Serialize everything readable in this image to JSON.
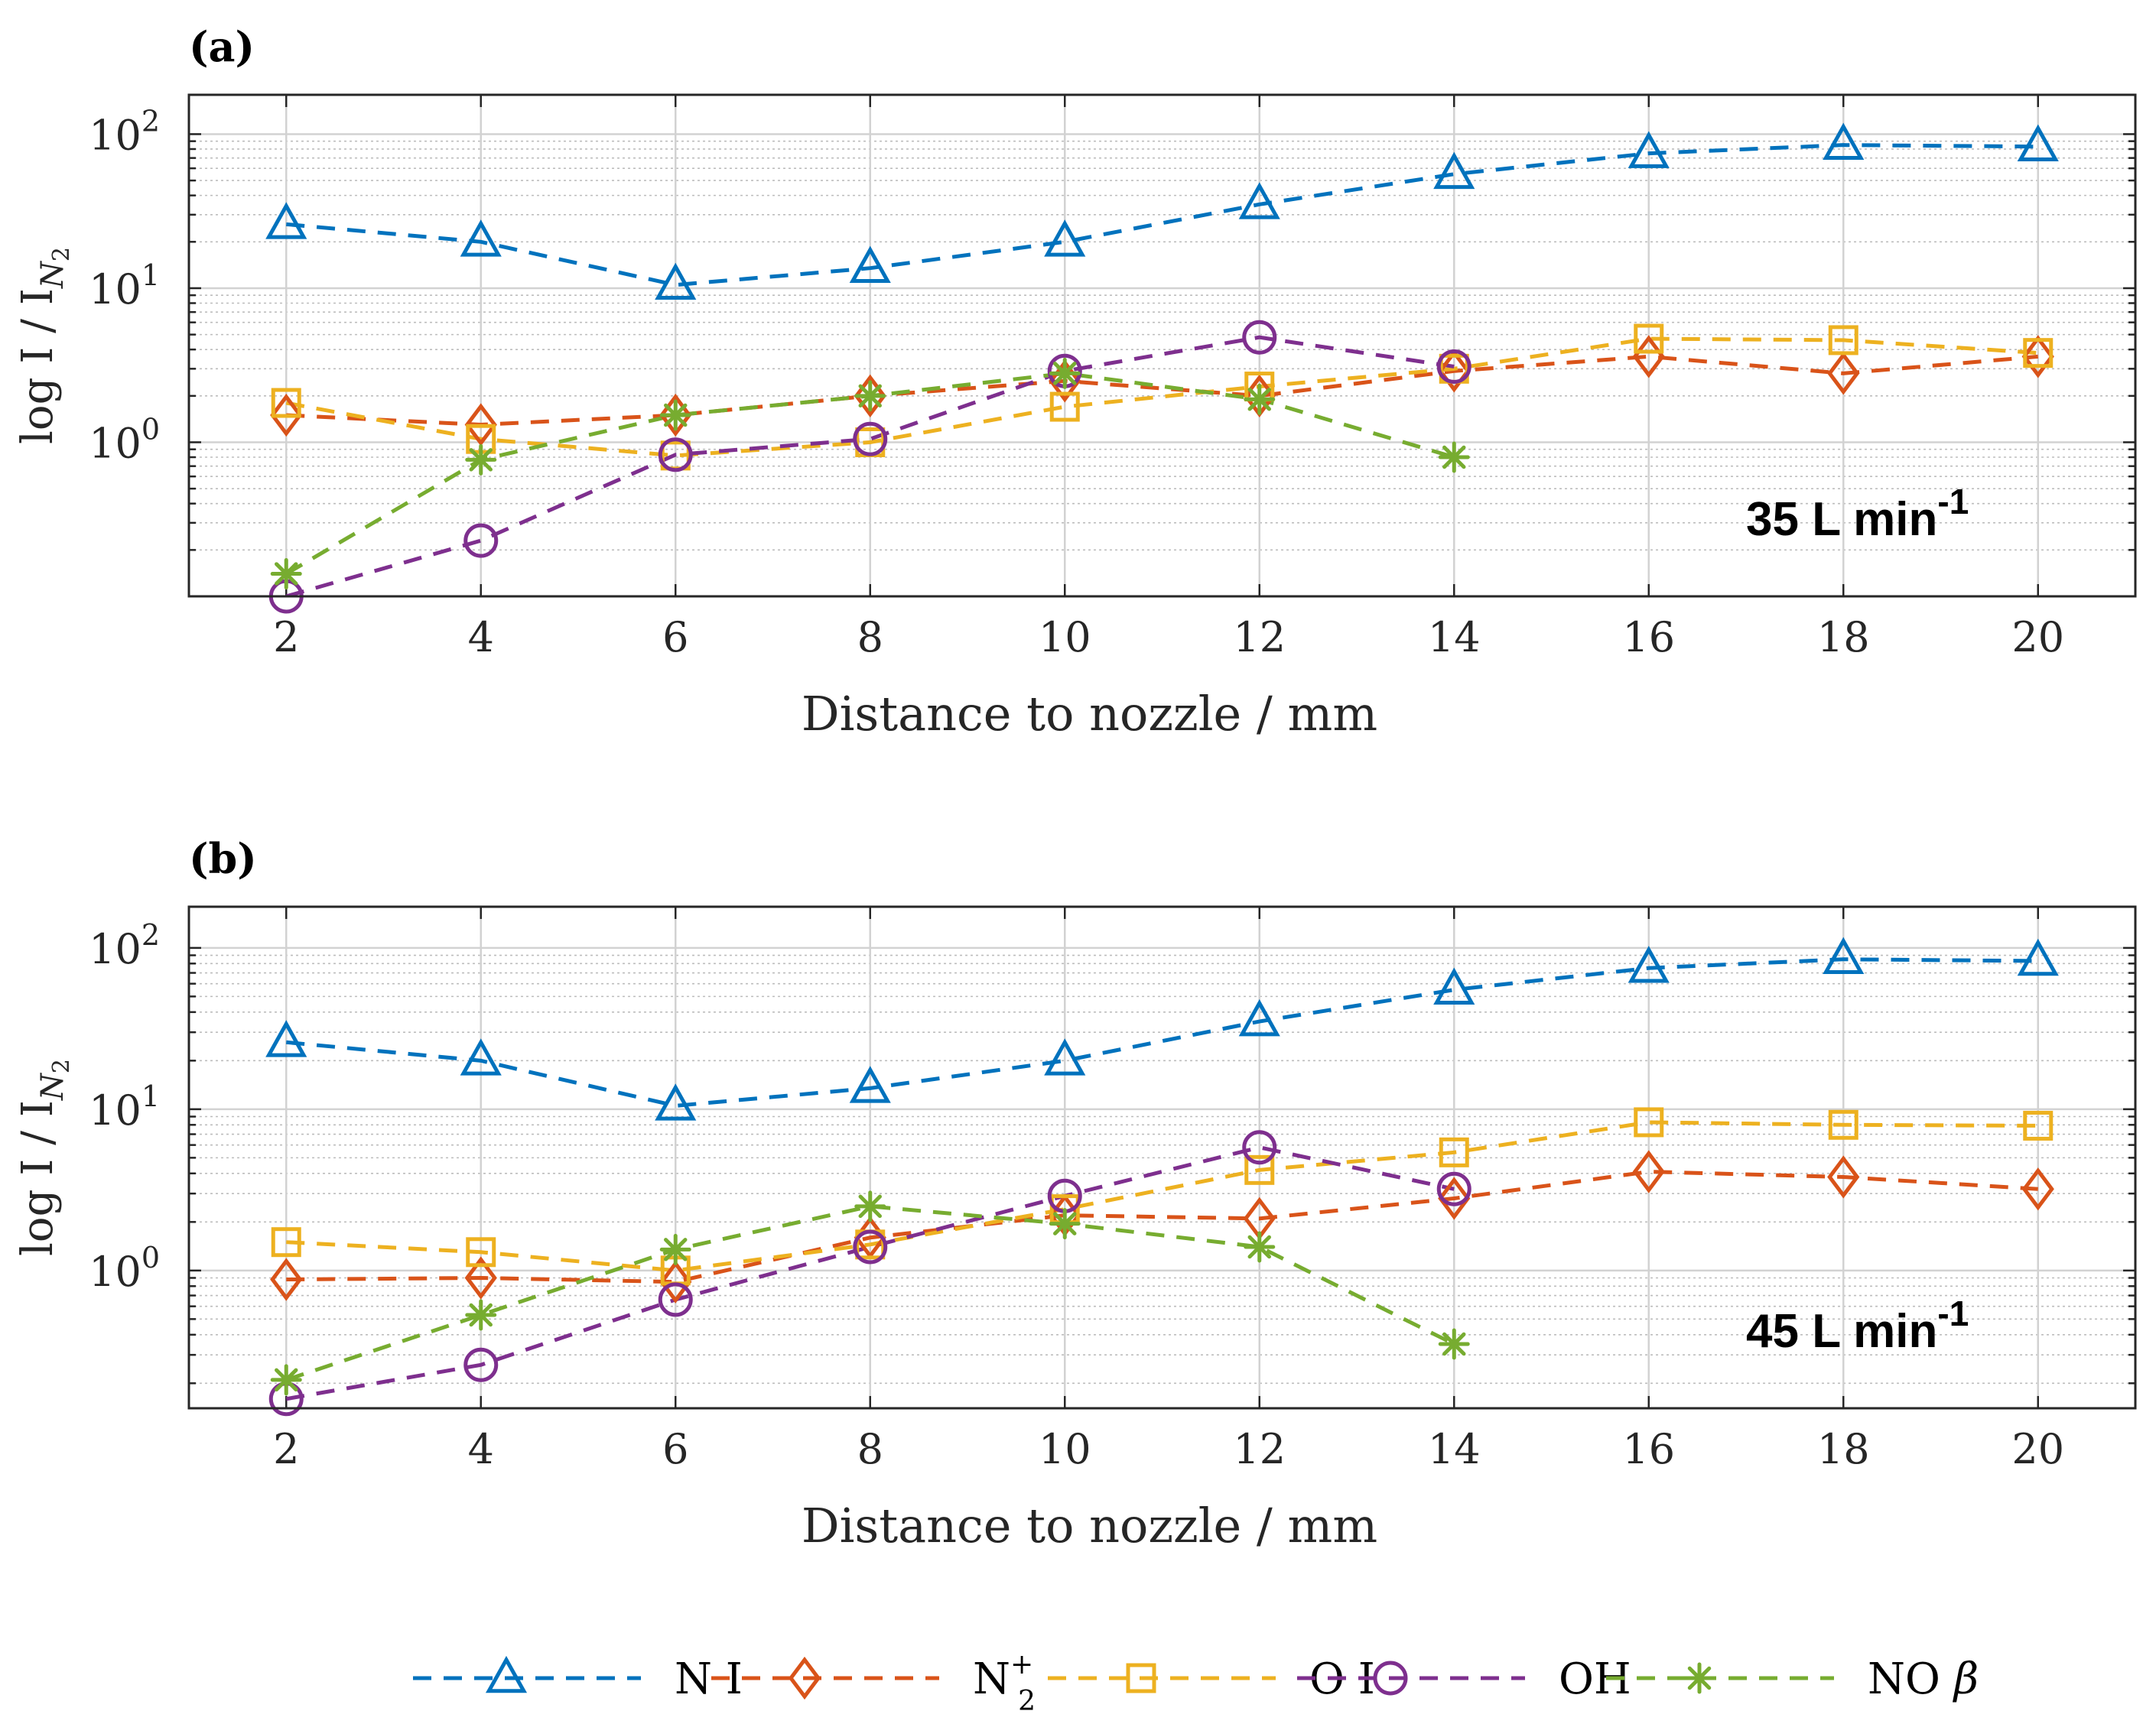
{
  "colors": {
    "N I": "#0072BD",
    "N2+": "#D95319",
    "O I": "#EDB120",
    "OH": "#7E2F8E",
    "NO beta": "#77AC30"
  },
  "legend": {
    "entries": [
      {
        "key": "N I",
        "marker": "triangle",
        "label": "N I"
      },
      {
        "key": "N2+",
        "marker": "diamond",
        "label": "N",
        "sub": "2",
        "sup": "+"
      },
      {
        "key": "O I",
        "marker": "square",
        "label": "O I"
      },
      {
        "key": "OH",
        "marker": "circle",
        "label": "OH"
      },
      {
        "key": "NO beta",
        "marker": "asterisk",
        "label": "NO",
        "greek": "β"
      }
    ]
  },
  "chart_data": [
    {
      "panel_label": "(a)",
      "type": "line",
      "yscale": "log",
      "annotation": {
        "text": "35 L min",
        "sup": "-1"
      },
      "xlabel": "Distance to nozzle / mm",
      "ylabel": {
        "main": "log I / I",
        "sub_letter": "N",
        "sub_digit": "2"
      },
      "xlim": [
        1,
        21
      ],
      "ylim": [
        0.1,
        180
      ],
      "xticks": [
        2,
        4,
        6,
        8,
        10,
        12,
        14,
        16,
        18,
        20
      ],
      "ytick_labels": [
        {
          "base": "10",
          "exp": "2",
          "value": 100
        },
        {
          "base": "10",
          "exp": "1",
          "value": 10
        },
        {
          "base": "10",
          "exp": "0",
          "value": 1
        }
      ],
      "grid": true,
      "series": [
        {
          "key": "N I",
          "x": [
            2,
            4,
            6,
            8,
            10,
            12,
            14,
            16,
            18,
            20
          ],
          "values": [
            26,
            20,
            10.5,
            13.5,
            20,
            35,
            55,
            75,
            85,
            83
          ]
        },
        {
          "key": "N2+",
          "x": [
            2,
            4,
            6,
            8,
            10,
            12,
            14,
            16,
            18,
            20
          ],
          "values": [
            1.5,
            1.3,
            1.5,
            2.0,
            2.5,
            2.0,
            2.9,
            3.6,
            2.8,
            3.6
          ]
        },
        {
          "key": "O I",
          "x": [
            2,
            4,
            6,
            8,
            10,
            12,
            14,
            16,
            18,
            20
          ],
          "values": [
            1.8,
            1.05,
            0.82,
            1.0,
            1.7,
            2.3,
            3.0,
            4.7,
            4.6,
            3.8
          ]
        },
        {
          "key": "OH",
          "x": [
            2,
            4,
            6,
            8,
            10,
            12,
            14
          ],
          "values": [
            0.1,
            0.23,
            0.83,
            1.05,
            2.9,
            4.8,
            3.1
          ]
        },
        {
          "key": "NO beta",
          "x": [
            2,
            4,
            6,
            8,
            10,
            12,
            14
          ],
          "values": [
            0.14,
            0.77,
            1.5,
            2.0,
            2.8,
            1.9,
            0.8
          ]
        }
      ]
    },
    {
      "panel_label": "(b)",
      "type": "line",
      "yscale": "log",
      "annotation": {
        "text": "45 L min",
        "sup": "-1"
      },
      "xlabel": "Distance to nozzle / mm",
      "ylabel": {
        "main": "log I / I",
        "sub_letter": "N",
        "sub_digit": "2"
      },
      "xlim": [
        1,
        21
      ],
      "ylim": [
        0.14,
        180
      ],
      "xticks": [
        2,
        4,
        6,
        8,
        10,
        12,
        14,
        16,
        18,
        20
      ],
      "ytick_labels": [
        {
          "base": "10",
          "exp": "2",
          "value": 100
        },
        {
          "base": "10",
          "exp": "1",
          "value": 10
        },
        {
          "base": "10",
          "exp": "0",
          "value": 1
        }
      ],
      "grid": true,
      "series": [
        {
          "key": "N I",
          "x": [
            2,
            4,
            6,
            8,
            10,
            12,
            14,
            16,
            18,
            20
          ],
          "values": [
            26,
            20,
            10.5,
            13.5,
            20,
            35,
            55,
            75,
            85,
            83
          ]
        },
        {
          "key": "N2+",
          "x": [
            2,
            4,
            6,
            8,
            10,
            12,
            14,
            16,
            18,
            20
          ],
          "values": [
            0.88,
            0.9,
            0.85,
            1.6,
            2.2,
            2.1,
            2.8,
            4.1,
            3.8,
            3.2
          ]
        },
        {
          "key": "O I",
          "x": [
            2,
            4,
            6,
            8,
            10,
            12,
            14,
            16,
            18,
            20
          ],
          "values": [
            1.5,
            1.3,
            1.0,
            1.45,
            2.4,
            4.2,
            5.4,
            8.3,
            8.0,
            7.9
          ]
        },
        {
          "key": "OH",
          "x": [
            2,
            4,
            6,
            8,
            10,
            12,
            14
          ],
          "values": [
            0.16,
            0.26,
            0.66,
            1.4,
            2.9,
            5.8,
            3.2
          ]
        },
        {
          "key": "NO beta",
          "x": [
            2,
            4,
            6,
            8,
            10,
            12,
            14
          ],
          "values": [
            0.21,
            0.53,
            1.35,
            2.5,
            1.95,
            1.4,
            0.35
          ]
        }
      ]
    }
  ]
}
